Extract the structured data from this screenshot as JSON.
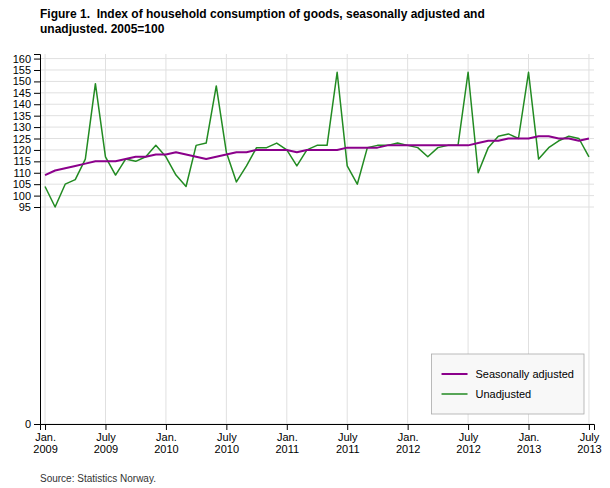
{
  "chart_data": {
    "type": "line",
    "title": "Figure 1.  Index of household consumption of goods, seasonally adjusted and\nunadjusted. 2005=100",
    "annotations": [
      "Source: Statistics Norway."
    ],
    "categories": [
      "Jan.\n2009",
      null,
      null,
      null,
      null,
      null,
      "July\n2009",
      null,
      null,
      null,
      null,
      null,
      "Jan.\n2010",
      null,
      null,
      null,
      null,
      null,
      "July\n2010",
      null,
      null,
      null,
      null,
      null,
      "Jan.\n2011",
      null,
      null,
      null,
      null,
      null,
      "July\n2011",
      null,
      null,
      null,
      null,
      null,
      "Jan.\n2012",
      null,
      null,
      null,
      null,
      null,
      "July\n2012",
      null,
      null,
      null,
      null,
      null,
      "Jan.\n2013",
      null,
      null,
      null,
      null,
      null,
      "July\n2013"
    ],
    "series": [
      {
        "name": "Unadjusted",
        "color": "#228B22",
        "values": [
          104,
          95,
          105,
          107,
          116,
          149,
          117,
          109,
          116,
          115,
          117,
          122,
          117,
          109,
          104,
          122,
          123,
          148,
          119,
          106,
          113,
          121,
          121,
          123,
          120,
          113,
          120,
          122,
          122,
          154,
          113,
          105,
          121,
          122,
          122,
          123,
          122,
          121,
          117,
          121,
          122,
          122,
          154,
          110,
          121,
          126,
          127,
          125,
          154,
          116,
          121,
          124,
          126,
          125,
          117
        ]
      },
      {
        "name": "Seasonally adjusted",
        "color": "#8b008b",
        "values": [
          109,
          111,
          112,
          113,
          114,
          115,
          115,
          115,
          116,
          117,
          117,
          118,
          118,
          119,
          118,
          117,
          116,
          117,
          118,
          119,
          119,
          120,
          120,
          120,
          120,
          119,
          120,
          120,
          120,
          120,
          121,
          121,
          121,
          121,
          122,
          122,
          122,
          122,
          122,
          122,
          122,
          122,
          122,
          123,
          124,
          124,
          125,
          125,
          125,
          126,
          126,
          125,
          125,
          124,
          125
        ]
      }
    ],
    "ylim": [
      0,
      162
    ],
    "yticks": [
      0,
      95,
      100,
      105,
      110,
      115,
      120,
      125,
      130,
      135,
      140,
      145,
      150,
      155,
      160
    ],
    "grid": true,
    "legend": "lower right"
  }
}
